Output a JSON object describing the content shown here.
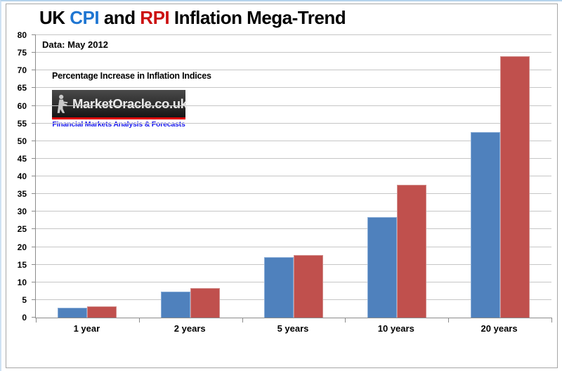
{
  "page": {
    "bg": "#ffffff",
    "top_edge_color": "#b5d3ec",
    "frame_border_color": "#a6a6a6",
    "gridline_color": "#c6c6c6",
    "axis_color": "#8c8c8c"
  },
  "title": {
    "uk": "UK ",
    "cpi": "CPI",
    "and": " and ",
    "rpi": "RPI",
    "rest": " Inflation Mega-Trend",
    "cpi_color": "#1f76d2",
    "rpi_color": "#cc1111"
  },
  "annotations": {
    "data_date": "Data: May 2012",
    "subtitle": "Percentage Increase in Inflation Indices"
  },
  "logo": {
    "name": "MarketOracle.co.uk",
    "tagline": "Financial Markets Analysis & Forecasts",
    "underline_color": "#dd0000",
    "tagline_color": "#1a1aee",
    "statue_color": "#c9c9c9"
  },
  "chart_data": {
    "type": "bar",
    "title": "UK CPI and RPI Inflation Mega-Trend",
    "categories": [
      "1 year",
      "2 years",
      "5 years",
      "10 years",
      "20 years"
    ],
    "series": [
      {
        "name": "CPI",
        "color": "#4F81BD",
        "border_color": "#87abd6",
        "values": [
          2.8,
          7.4,
          17.2,
          28.4,
          52.5
        ]
      },
      {
        "name": "RPI",
        "color": "#C0504D",
        "border_color": "#d28e8c",
        "values": [
          3.1,
          8.4,
          17.8,
          37.6,
          74.0
        ]
      }
    ],
    "ylim": [
      0,
      80
    ],
    "ytick_step": 5,
    "grid": true,
    "legend_position": "none",
    "xlabel": "",
    "ylabel": ""
  }
}
